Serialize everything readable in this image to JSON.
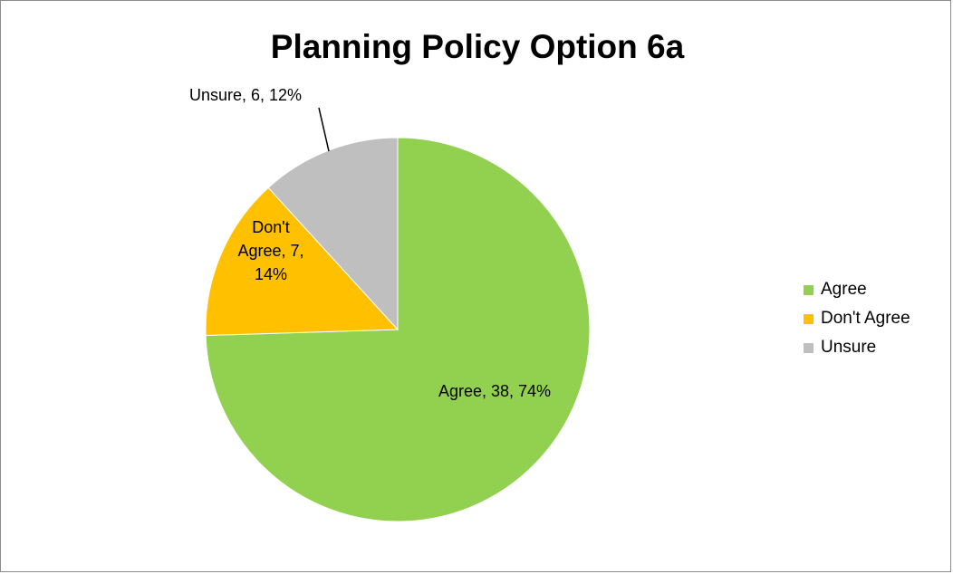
{
  "chart_data": {
    "type": "pie",
    "title": "Planning Policy Option 6a",
    "slices": [
      {
        "name": "Agree",
        "value": 38,
        "percent": "74%",
        "label": "Agree, 38, 74%",
        "label_lines": [
          "Agree, 38, 74%"
        ],
        "color": "#92d050"
      },
      {
        "name": "Don't Agree",
        "value": 7,
        "percent": "14%",
        "label": "Don't Agree, 7, 14%",
        "label_lines": [
          "Don't",
          "Agree, 7,",
          "14%"
        ],
        "color": "#ffc000"
      },
      {
        "name": "Unsure",
        "value": 6,
        "percent": "12%",
        "label": "Unsure, 6, 12%",
        "label_lines": [
          "Unsure, 6, 12%"
        ],
        "color": "#bfbfbf"
      }
    ],
    "legend": {
      "position": "right",
      "entries": [
        "Agree",
        "Don't Agree",
        "Unsure"
      ]
    }
  }
}
